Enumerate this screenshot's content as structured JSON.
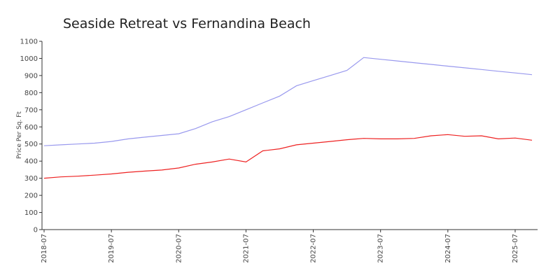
{
  "chart_data": {
    "type": "line",
    "title": "Seaside Retreat vs Fernandina Beach",
    "y_label": "Price Per Sq. Ft",
    "x": [
      "2018-07",
      "2018-10",
      "2019-01",
      "2019-04",
      "2019-07",
      "2019-10",
      "2020-01",
      "2020-04",
      "2020-07",
      "2020-10",
      "2021-01",
      "2021-04",
      "2021-07",
      "2021-10",
      "2022-01",
      "2022-04",
      "2022-07",
      "2022-10",
      "2023-01",
      "2023-04",
      "2023-07",
      "2023-10",
      "2024-01",
      "2024-04",
      "2024-07",
      "2024-10",
      "2025-01",
      "2025-04",
      "2025-07",
      "2025-10"
    ],
    "series": [
      {
        "color": "#9999ee",
        "values": [
          490,
          495,
          500,
          505,
          515,
          530,
          540,
          550,
          560,
          590,
          630,
          660,
          700,
          740,
          780,
          840,
          870,
          900,
          930,
          1005,
          995,
          985,
          975,
          965,
          955,
          945,
          935,
          925,
          915,
          905
        ]
      },
      {
        "color": "#ee2222",
        "values": [
          300,
          308,
          312,
          318,
          325,
          335,
          342,
          348,
          360,
          382,
          395,
          412,
          395,
          460,
          472,
          495,
          505,
          515,
          525,
          533,
          530,
          530,
          533,
          548,
          555,
          545,
          548,
          530,
          535,
          522
        ]
      }
    ],
    "xlim": [
      "2018-07",
      "2025-11"
    ],
    "xticks": [
      "2018-07",
      "2019-07",
      "2020-07",
      "2021-07",
      "2022-07",
      "2023-07",
      "2024-07",
      "2025-07"
    ],
    "ylim": [
      0,
      1100
    ],
    "yticks": [
      0,
      100,
      200,
      300,
      400,
      500,
      600,
      700,
      800,
      900,
      1000,
      1100
    ]
  }
}
